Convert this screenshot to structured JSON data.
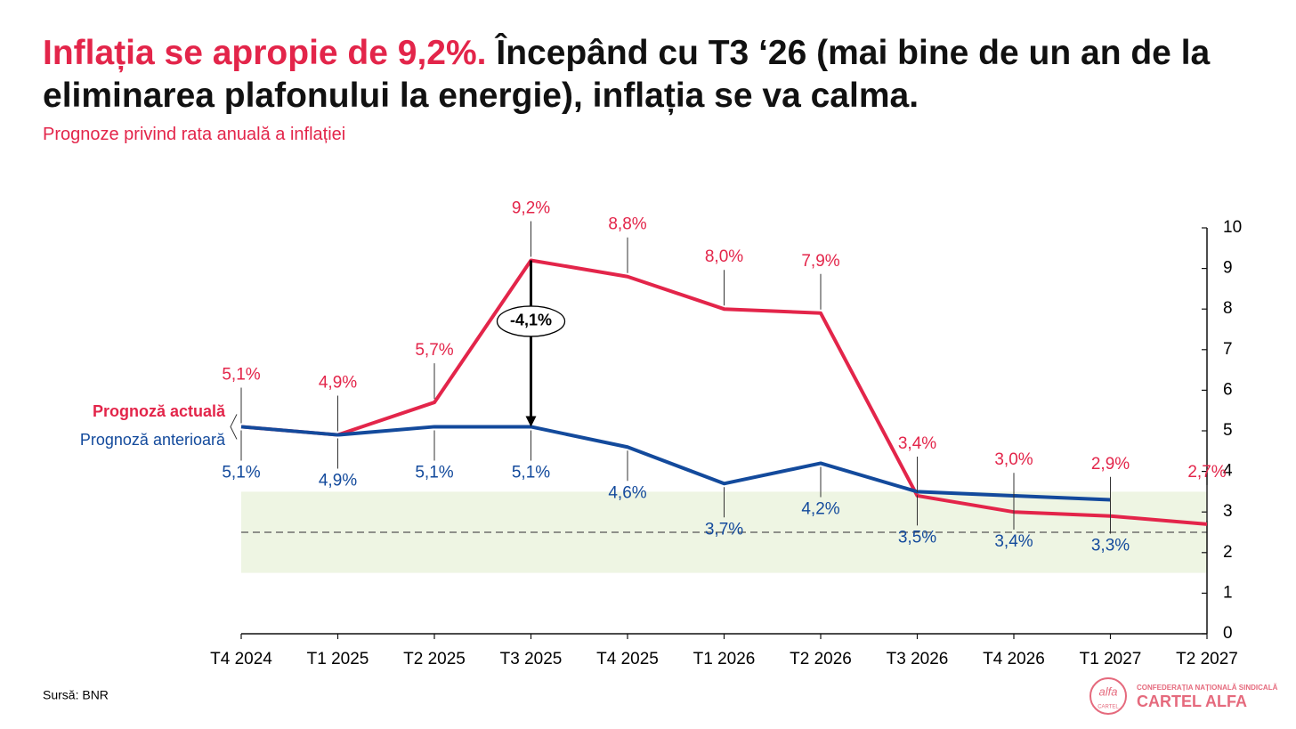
{
  "chart_data": {
    "type": "line",
    "title_lead": "Inflația se apropie de 9,2%.",
    "title": "Începând cu T3 ‘26 (mai bine de un an de la eliminarea plafonului la energie), inflația se va calma.",
    "subtitle": "Prognoze privind rata anuală a inflației",
    "source": "Sursă: BNR",
    "annotation": "-4,1%",
    "categories": [
      "T4 2024",
      "T1 2025",
      "T2 2025",
      "T3 2025",
      "T4 2025",
      "T1 2026",
      "T2 2026",
      "T3 2026",
      "T4 2026",
      "T1 2027",
      "T2 2027"
    ],
    "series": [
      {
        "name": "Prognoză actuală",
        "color": "#e3254a",
        "values": [
          5.1,
          4.9,
          5.7,
          9.2,
          8.8,
          8.0,
          7.9,
          3.4,
          3.0,
          2.9,
          2.7
        ],
        "value_labels": [
          "5,1%",
          "4,9%",
          "5,7%",
          "9,2%",
          "8,8%",
          "8,0%",
          "7,9%",
          "3,4%",
          "3,0%",
          "2,9%",
          "2,7%"
        ]
      },
      {
        "name": "Prognoză anterioară",
        "color": "#134a9c",
        "values": [
          5.1,
          4.9,
          5.1,
          5.1,
          4.6,
          3.7,
          4.2,
          3.5,
          3.4,
          3.3,
          null
        ],
        "value_labels": [
          "5,1%",
          "4,9%",
          "5,1%",
          "5,1%",
          "4,6%",
          "3,7%",
          "4,2%",
          "3,5%",
          "3,4%",
          "3,3%",
          null
        ]
      }
    ],
    "ylim": [
      0,
      10
    ],
    "yticks": [
      0,
      1,
      2,
      3,
      4,
      5,
      6,
      7,
      8,
      9,
      10
    ],
    "target_band": [
      1.5,
      3.5
    ],
    "target_line": 2.5,
    "band_color": "#eef5e3"
  },
  "logo": {
    "emblem": "alfa",
    "emblem_sub": "CARTEL",
    "caption": "CONFEDERAȚIA NAȚIONALĂ SINDICALĂ",
    "name": "CARTEL ALFA"
  }
}
